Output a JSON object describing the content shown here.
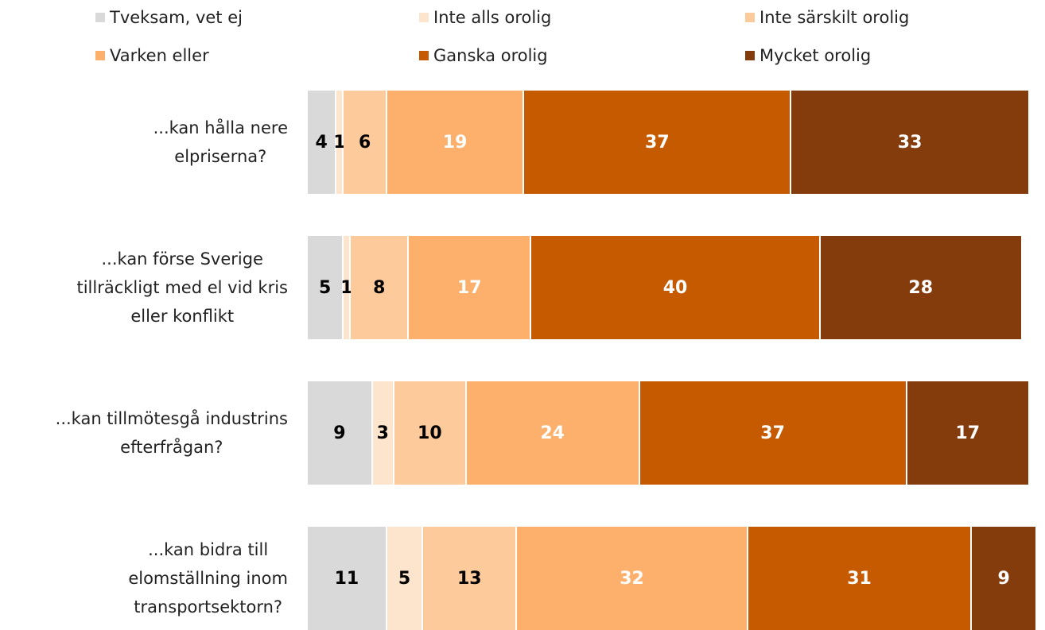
{
  "chart_data": {
    "type": "stacked-barh",
    "categories": [
      "...kan hålla nere\nelpriserna?",
      "...kan förse Sverige\ntillräckligt med el vid kris\neller konflikt",
      "...kan tillmötesgå industrins\nefterfrågan?",
      "...kan bidra till\nelomställning inom\ntransportsektorn?"
    ],
    "series": [
      {
        "name": "Tveksam, vet ej",
        "color": "#d9d9d9",
        "label_color": "#000000",
        "values": [
          4,
          5,
          9,
          11
        ]
      },
      {
        "name": "Inte alls orolig",
        "color": "#fde4cc",
        "label_color": "#000000",
        "values": [
          1,
          1,
          3,
          5
        ]
      },
      {
        "name": "Inte särskilt orolig",
        "color": "#fdca9c",
        "label_color": "#000000",
        "values": [
          6,
          8,
          10,
          13
        ]
      },
      {
        "name": "Varken eller",
        "color": "#fdb06c",
        "label_color": "#ffffff",
        "values": [
          19,
          17,
          24,
          32
        ]
      },
      {
        "name": "Ganska orolig",
        "color": "#c55a00",
        "label_color": "#ffffff",
        "values": [
          37,
          40,
          37,
          31
        ]
      },
      {
        "name": "Mycket orolig",
        "color": "#843c0c",
        "label_color": "#ffffff",
        "values": [
          33,
          28,
          17,
          9
        ]
      }
    ],
    "xlim": [
      0,
      101
    ],
    "legend": "top"
  }
}
